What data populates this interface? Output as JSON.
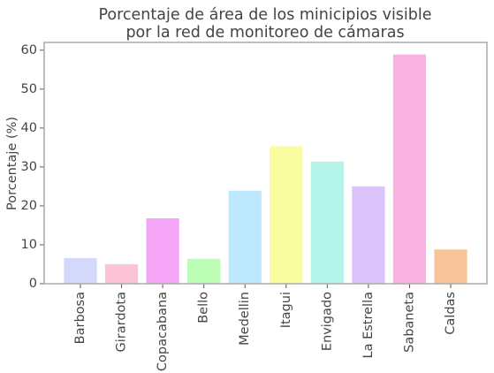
{
  "chart_data": {
    "type": "bar",
    "title": [
      "Porcentaje de área de los minicipios visible",
      "por la red de monitoreo de cámaras"
    ],
    "y_label": "Porcentaje (%)",
    "categories": [
      "Barbosa",
      "Girardota",
      "Copacabana",
      "Bello",
      "Medellin",
      "Itagui",
      "Envigado",
      "La Estrella",
      "Sabaneta",
      "Caldas"
    ],
    "values": [
      6.6,
      5,
      16.8,
      6.4,
      23.9,
      35.3,
      31.4,
      25,
      58.9,
      8.8
    ],
    "colors": [
      "#d4d8fb",
      "#fcc3d6",
      "#f5a6f7",
      "#bcfdb5",
      "#bde8fd",
      "#fafd9f",
      "#b4f4e9",
      "#dcc3fb",
      "#f9b1df",
      "#f8c59a"
    ],
    "ylim": [
      0,
      62
    ],
    "yticks": [
      0,
      10,
      20,
      30,
      40,
      50,
      60
    ],
    "grid": false
  }
}
